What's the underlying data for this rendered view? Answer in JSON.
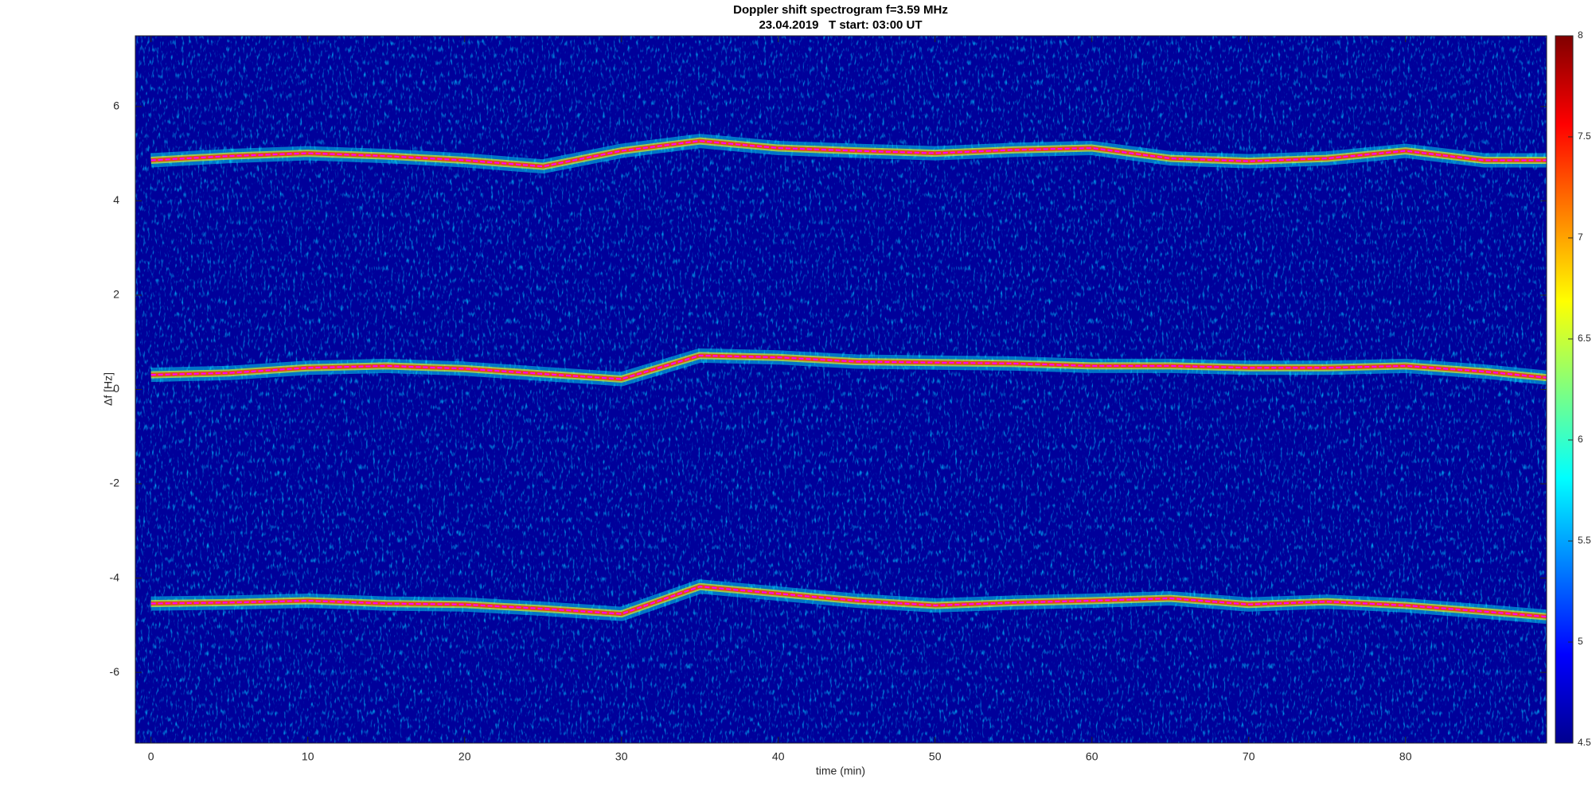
{
  "chart_data": {
    "type": "spectrogram",
    "title": "Doppler shift spectrogram f=3.59 MHz",
    "subtitle": "23.04.2019   T start: 03:00 UT",
    "xlabel": "time (min)",
    "ylabel": "Δf [Hz]",
    "x": [
      0,
      5,
      10,
      15,
      20,
      25,
      30,
      35,
      40,
      45,
      50,
      55,
      60,
      65,
      70,
      75,
      80,
      85,
      89
    ],
    "series": [
      {
        "color": "#ff00ff",
        "values": [
          4.86,
          4.95,
          5.01,
          4.95,
          4.86,
          4.73,
          5.06,
          5.27,
          5.12,
          5.06,
          5.01,
          5.08,
          5.12,
          4.9,
          4.84,
          4.9,
          5.06,
          4.86,
          4.86
        ]
      },
      {
        "color": "#ff00ff",
        "values": [
          0.31,
          0.35,
          0.46,
          0.5,
          0.44,
          0.33,
          0.22,
          0.72,
          0.68,
          0.59,
          0.57,
          0.55,
          0.5,
          0.5,
          0.46,
          0.46,
          0.5,
          0.38,
          0.25
        ]
      },
      {
        "color": "#ff00ff",
        "values": [
          -4.54,
          -4.52,
          -4.48,
          -4.54,
          -4.56,
          -4.65,
          -4.76,
          -4.18,
          -4.33,
          -4.48,
          -4.58,
          -4.52,
          -4.48,
          -4.43,
          -4.56,
          -4.5,
          -4.58,
          -4.71,
          -4.82
        ]
      }
    ],
    "xlim": [
      -1,
      89
    ],
    "xticks": [
      0,
      10,
      20,
      30,
      40,
      50,
      60,
      70,
      80
    ],
    "ylim": [
      -7.5,
      7.5
    ],
    "yticks": [
      -6,
      -4,
      -2,
      0,
      2,
      4,
      6
    ],
    "colormap": "jet",
    "clim": [
      4.5,
      8
    ],
    "cticks": [
      4.5,
      5,
      5.5,
      6,
      6.5,
      7,
      7.5,
      8
    ]
  }
}
